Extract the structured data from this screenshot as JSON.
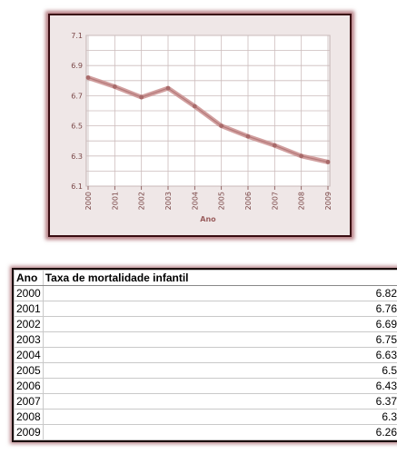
{
  "chart_data": {
    "type": "line",
    "title": "",
    "xlabel": "Ano",
    "ylabel": "",
    "categories": [
      "2000",
      "2001",
      "2002",
      "2003",
      "2004",
      "2005",
      "2006",
      "2007",
      "2008",
      "2009"
    ],
    "values": [
      6.82,
      6.76,
      6.69,
      6.75,
      6.63,
      6.5,
      6.43,
      6.37,
      6.3,
      6.26
    ],
    "ylim": [
      6.1,
      7.1
    ],
    "yticks": [
      "6.1",
      "6.3",
      "6.5",
      "6.7",
      "6.9",
      "7.1"
    ],
    "grid": true,
    "colors": {
      "line": "#c98e8e",
      "line_dark": "#a86a6a",
      "grid": "#ccbcbc",
      "plot_bg": "#ffffff",
      "tick_text": "#7a4747",
      "axis_title": "#9a5e5e"
    }
  },
  "table": {
    "headers": [
      "Ano",
      "Taxa de mortalidade infantil"
    ],
    "rows": [
      {
        "year": "2000",
        "value": "6.82"
      },
      {
        "year": "2001",
        "value": "6.76"
      },
      {
        "year": "2002",
        "value": "6.69"
      },
      {
        "year": "2003",
        "value": "6.75"
      },
      {
        "year": "2004",
        "value": "6.63"
      },
      {
        "year": "2005",
        "value": "6.5"
      },
      {
        "year": "2006",
        "value": "6.43"
      },
      {
        "year": "2007",
        "value": "6.37"
      },
      {
        "year": "2008",
        "value": "6.3"
      },
      {
        "year": "2009",
        "value": "6.26"
      }
    ]
  }
}
